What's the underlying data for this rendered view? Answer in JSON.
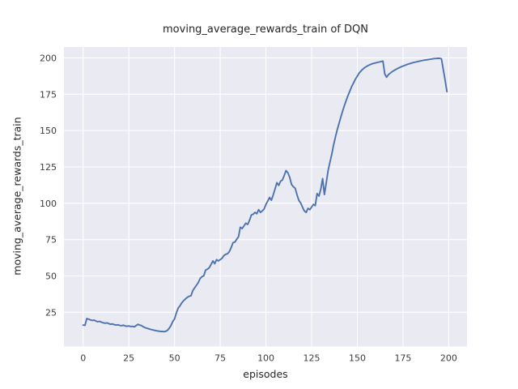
{
  "figure": {
    "title": "moving_average_rewards_train of DQN",
    "xlabel": "episodes",
    "ylabel": "moving_average_rewards_train"
  },
  "chart_data": {
    "type": "line",
    "title": "moving_average_rewards_train of DQN",
    "xlabel": "episodes",
    "ylabel": "moving_average_rewards_train",
    "xticks": [
      0,
      25,
      50,
      75,
      100,
      125,
      150,
      175,
      200
    ],
    "yticks": [
      25,
      50,
      75,
      100,
      125,
      150,
      175,
      200
    ],
    "xlim": [
      -10.5,
      210
    ],
    "ylim": [
      1.5,
      207.5
    ],
    "grid": true,
    "legend_position": "none",
    "style": {
      "axes_bg": "#eaeaf2",
      "grid_color": "#ffffff",
      "fig_bg": "#ffffff",
      "line_color": "#4c72b0",
      "text_color": "#262626",
      "tick_color": "#3b3b3b"
    },
    "series": [
      {
        "name": "moving_average_rewards_train",
        "color": "#4c72b0",
        "x_start": 0,
        "x_step": 1,
        "y": [
          16.2,
          16.0,
          20.7,
          20.3,
          19.8,
          19.4,
          19.6,
          19.0,
          18.5,
          18.8,
          18.2,
          17.8,
          17.5,
          17.7,
          17.2,
          16.8,
          17.0,
          16.5,
          16.2,
          16.4,
          16.0,
          15.8,
          16.1,
          15.6,
          15.4,
          15.6,
          15.2,
          15.3,
          15.0,
          15.9,
          16.7,
          16.2,
          15.8,
          15.0,
          14.4,
          14.0,
          13.6,
          13.2,
          12.9,
          12.6,
          12.3,
          12.1,
          11.9,
          11.8,
          11.7,
          11.8,
          12.4,
          13.9,
          15.8,
          18.6,
          20.4,
          24.5,
          27.9,
          29.5,
          31.6,
          33.0,
          34.2,
          35.3,
          36.0,
          36.4,
          39.9,
          41.8,
          43.6,
          45.5,
          48.3,
          49.5,
          50.1,
          54.0,
          54.7,
          55.7,
          58.0,
          60.3,
          58.4,
          61.2,
          60.3,
          61.2,
          62.2,
          64.0,
          64.9,
          65.3,
          66.8,
          69.6,
          72.9,
          73.3,
          75.2,
          77.0,
          83.5,
          82.6,
          84.5,
          86.3,
          85.4,
          88.2,
          91.9,
          92.5,
          93.7,
          92.8,
          95.6,
          93.7,
          94.7,
          96.0,
          99.3,
          101.5,
          104.0,
          102.1,
          105.8,
          110.0,
          114.2,
          112.3,
          115.1,
          116.0,
          119.0,
          122.5,
          121.0,
          117.9,
          113.0,
          111.4,
          110.4,
          105.8,
          102.0,
          100.2,
          97.4,
          94.7,
          93.7,
          96.5,
          95.6,
          97.4,
          99.3,
          98.4,
          106.7,
          104.9,
          109.5,
          117.0,
          106.0,
          114.0,
          122.6,
          128.1,
          133.7,
          140.0,
          145.5,
          150.5,
          155.0,
          159.5,
          163.5,
          167.5,
          171.0,
          174.5,
          177.5,
          180.5,
          183.0,
          185.5,
          187.5,
          189.5,
          191.0,
          192.3,
          193.3,
          194.1,
          194.8,
          195.4,
          195.9,
          196.3,
          196.6,
          196.9,
          197.2,
          197.5,
          197.8,
          189.0,
          186.7,
          188.5,
          189.5,
          190.5,
          191.3,
          192.0,
          192.7,
          193.3,
          193.9,
          194.4,
          194.9,
          195.4,
          195.8,
          196.2,
          196.6,
          196.9,
          197.2,
          197.5,
          197.8,
          198.0,
          198.3,
          198.5,
          198.7,
          198.9,
          199.1,
          199.3,
          199.5,
          199.6,
          199.7,
          199.7,
          199.4,
          192.3,
          184.9,
          176.8
        ]
      }
    ]
  }
}
